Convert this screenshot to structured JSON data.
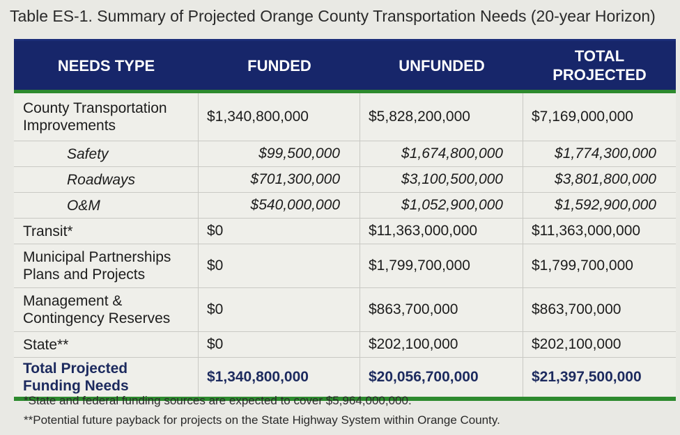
{
  "caption": "Table ES-1. Summary of Projected Orange County Transportation Needs (20-year Horizon)",
  "header": {
    "needs_type": "NEEDS TYPE",
    "funded": "FUNDED",
    "unfunded": "UNFUNDED",
    "total_line1": "TOTAL",
    "total_line2": "PROJECTED"
  },
  "rows": [
    {
      "name_line1": "County Transportation",
      "name_line2": "Improvements",
      "funded": "$1,340,800,000",
      "unfunded": "$5,828,200,000",
      "total": "$7,169,000,000"
    },
    {
      "name_line1": "Safety",
      "funded": "$99,500,000",
      "unfunded": "$1,674,800,000",
      "total": "$1,774,300,000"
    },
    {
      "name_line1": "Roadways",
      "funded": "$701,300,000",
      "unfunded": "$3,100,500,000",
      "total": "$3,801,800,000"
    },
    {
      "name_line1": "O&M",
      "funded": "$540,000,000",
      "unfunded": "$1,052,900,000",
      "total": "$1,592,900,000"
    },
    {
      "name_line1": "Transit*",
      "funded": "$0",
      "unfunded": "$11,363,000,000",
      "total": "$11,363,000,000"
    },
    {
      "name_line1": "Municipal Partnerships",
      "name_line2": "Plans and Projects",
      "funded": "$0",
      "unfunded": "$1,799,700,000",
      "total": "$1,799,700,000"
    },
    {
      "name_line1": "Management &",
      "name_line2": "Contingency Reserves",
      "funded": "$0",
      "unfunded": "$863,700,000",
      "total": "$863,700,000"
    },
    {
      "name_line1": "State**",
      "funded": "$0",
      "unfunded": "$202,100,000",
      "total": "$202,100,000"
    },
    {
      "name_line1": "Total Projected",
      "name_line2": "Funding Needs",
      "funded": "$1,340,800,000",
      "unfunded": "$20,056,700,000",
      "total": "$21,397,500,000"
    }
  ],
  "footnotes": [
    "*State and federal funding sources are expected to cover $5,964,000,000.",
    "**Potential future payback for projects on the State Highway System within Orange County."
  ]
}
